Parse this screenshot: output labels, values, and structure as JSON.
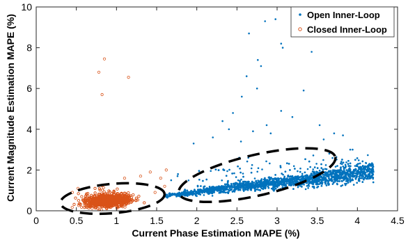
{
  "chart_data": {
    "type": "scatter",
    "xlabel": "Current Phase Estimation MAPE (%)",
    "ylabel": "Current Magnitude Estimation MAPE (%)",
    "xlim": [
      0,
      4.5
    ],
    "ylim": [
      0,
      10
    ],
    "x_ticks": [
      "0",
      "0.5",
      "1",
      "1.5",
      "2",
      "2.5",
      "3",
      "3.5",
      "4",
      "4.5"
    ],
    "y_ticks": [
      "0",
      "2",
      "4",
      "6",
      "8",
      "10"
    ],
    "grid": false,
    "legend_position": "top-right",
    "series": [
      {
        "name": "Open Inner-Loop",
        "marker": "filled dot",
        "color": "#0072BD",
        "approx_points": 3000,
        "cluster": {
          "x_range": [
            1.6,
            4.2
          ],
          "y_range": [
            0.6,
            3.0
          ],
          "x_center": 2.75,
          "y_center": 1.5
        },
        "outliers": [
          [
            2.65,
            8.7
          ],
          [
            2.85,
            9.3
          ],
          [
            2.98,
            9.4
          ],
          [
            3.05,
            8.2
          ],
          [
            3.07,
            8.0
          ],
          [
            2.76,
            7.4
          ],
          [
            3.43,
            7.8
          ],
          [
            2.8,
            7.1
          ],
          [
            2.62,
            6.6
          ],
          [
            2.75,
            6.0
          ],
          [
            3.33,
            5.9
          ],
          [
            2.56,
            5.6
          ],
          [
            2.45,
            4.8
          ],
          [
            3.05,
            4.9
          ],
          [
            3.19,
            4.6
          ],
          [
            2.32,
            4.4
          ],
          [
            3.53,
            4.2
          ],
          [
            2.87,
            4.2
          ],
          [
            2.4,
            4.0
          ],
          [
            2.7,
            3.9
          ],
          [
            3.58,
            3.5
          ],
          [
            3.82,
            3.7
          ],
          [
            3.71,
            3.8
          ],
          [
            2.2,
            3.6
          ],
          [
            1.96,
            3.3
          ],
          [
            2.92,
            3.8
          ],
          [
            2.55,
            3.4
          ],
          [
            4.15,
            2.3
          ],
          [
            4.01,
            2.3
          ],
          [
            3.97,
            2.2
          ],
          [
            3.91,
            2.0
          ],
          [
            3.8,
            2.4
          ],
          [
            3.88,
            1.8
          ],
          [
            1.68,
            1.5
          ],
          [
            1.76,
            1.7
          ]
        ]
      },
      {
        "name": "Closed Inner-Loop",
        "marker": "open circle",
        "color": "#D95319",
        "approx_points": 1500,
        "cluster": {
          "x_range": [
            0.4,
            1.45
          ],
          "y_range": [
            0.05,
            1.8
          ],
          "x_center": 0.9,
          "y_center": 0.5
        },
        "outliers": [
          [
            0.85,
            7.45
          ],
          [
            0.78,
            6.8
          ],
          [
            1.15,
            6.55
          ],
          [
            0.82,
            5.7
          ],
          [
            1.62,
            2.0
          ],
          [
            1.42,
            1.9
          ],
          [
            1.3,
            1.7
          ],
          [
            1.55,
            1.6
          ],
          [
            1.1,
            1.6
          ],
          [
            0.52,
            1.1
          ],
          [
            0.45,
            0.9
          ],
          [
            1.48,
            0.9
          ],
          [
            1.6,
            1.2
          ]
        ]
      }
    ],
    "annotations": [
      {
        "shape": "dashed ellipse",
        "center": [
          0.95,
          0.6
        ],
        "radii": [
          0.65,
          0.72
        ],
        "rotation_deg": -5
      },
      {
        "shape": "dashed ellipse",
        "center": [
          2.75,
          1.75
        ],
        "radii": [
          1.0,
          1.0
        ],
        "rotation_deg": -13
      }
    ]
  }
}
